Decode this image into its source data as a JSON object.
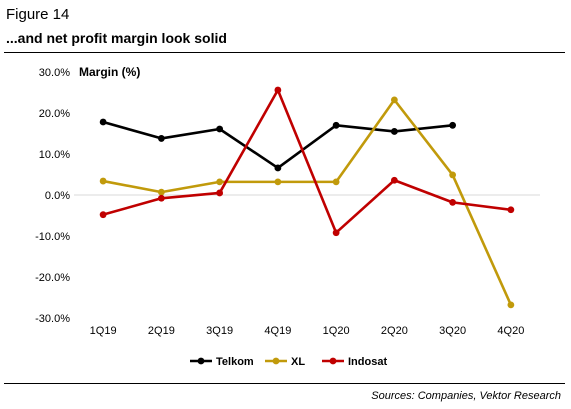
{
  "figure": {
    "label": "Figure 14",
    "title": "...and net profit margin look solid",
    "source": "Sources: Companies, Vektor Research"
  },
  "chart_data": {
    "type": "line",
    "title": "Margin (%)",
    "categories": [
      "1Q19",
      "2Q19",
      "3Q19",
      "4Q19",
      "1Q20",
      "2Q20",
      "3Q20",
      "4Q20"
    ],
    "ylim": [
      -30,
      30
    ],
    "yticks": [
      "30.0%",
      "20.0%",
      "10.0%",
      "0.0%",
      "-10.0%",
      "-20.0%",
      "-30.0%"
    ],
    "ytick_values": [
      30,
      20,
      10,
      0,
      -10,
      -20,
      -30
    ],
    "grid": "zero line only",
    "legend": "bottom-center",
    "series": [
      {
        "name": "Telkom",
        "color": "#000000",
        "values": [
          17.8,
          13.8,
          16.1,
          6.6,
          17.0,
          15.5,
          17.0,
          null
        ]
      },
      {
        "name": "XL",
        "color": "#C19A0B",
        "values": [
          3.4,
          0.7,
          3.2,
          3.2,
          3.2,
          23.2,
          4.9,
          -26.8
        ]
      },
      {
        "name": "Indosat",
        "color": "#C00000",
        "values": [
          -4.8,
          -0.8,
          0.5,
          25.6,
          -9.2,
          3.6,
          -1.8,
          -3.6
        ]
      }
    ]
  }
}
